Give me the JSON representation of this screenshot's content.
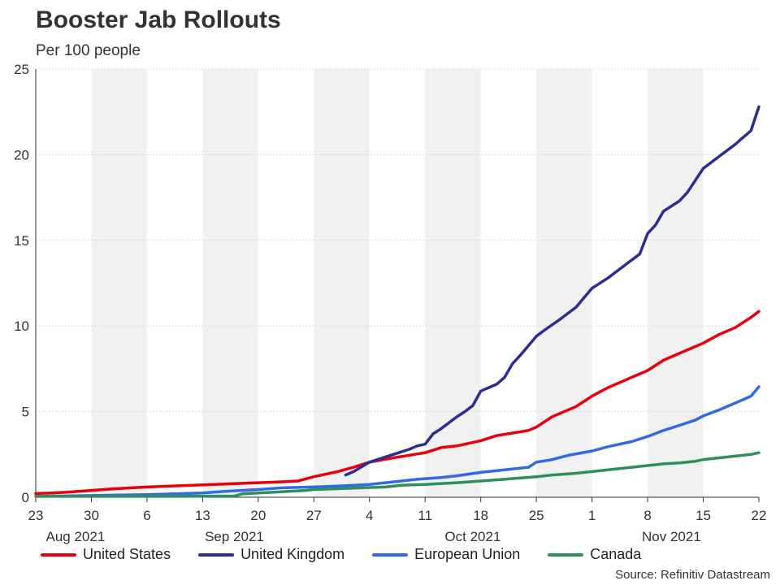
{
  "chart_data": {
    "type": "line",
    "title": "Booster Jab Rollouts",
    "subtitle": "Per 100 people",
    "source": "Source: Refinitiv Datastream",
    "ylim": [
      0,
      25
    ],
    "y_ticks": [
      "0",
      "5",
      "10",
      "15",
      "20",
      "25"
    ],
    "x_day_range": [
      0,
      91
    ],
    "x_ticks": [
      {
        "day": 0,
        "label": "23"
      },
      {
        "day": 7,
        "label": "30"
      },
      {
        "day": 14,
        "label": "6"
      },
      {
        "day": 21,
        "label": "13"
      },
      {
        "day": 28,
        "label": "20"
      },
      {
        "day": 35,
        "label": "27"
      },
      {
        "day": 42,
        "label": "4"
      },
      {
        "day": 49,
        "label": "11"
      },
      {
        "day": 56,
        "label": "18"
      },
      {
        "day": 63,
        "label": "25"
      },
      {
        "day": 70,
        "label": "1"
      },
      {
        "day": 77,
        "label": "8"
      },
      {
        "day": 84,
        "label": "15"
      },
      {
        "day": 91,
        "label": "22"
      }
    ],
    "month_labels": [
      {
        "day": 5,
        "label": "Aug 2021"
      },
      {
        "day": 25,
        "label": "Sep 2021"
      },
      {
        "day": 55,
        "label": "Oct 2021"
      },
      {
        "day": 80,
        "label": "Nov 2021"
      }
    ],
    "shaded_weeks": [
      [
        7,
        14
      ],
      [
        21,
        28
      ],
      [
        35,
        42
      ],
      [
        49,
        56
      ],
      [
        63,
        70
      ],
      [
        77,
        84
      ]
    ],
    "series": [
      {
        "name": "United States",
        "color": "#e8000b",
        "points": [
          [
            0,
            0.22
          ],
          [
            2,
            0.25
          ],
          [
            4,
            0.3
          ],
          [
            7,
            0.4
          ],
          [
            10,
            0.5
          ],
          [
            14,
            0.6
          ],
          [
            17,
            0.65
          ],
          [
            21,
            0.72
          ],
          [
            24,
            0.78
          ],
          [
            28,
            0.85
          ],
          [
            31,
            0.9
          ],
          [
            33,
            0.95
          ],
          [
            35,
            1.2
          ],
          [
            38,
            1.5
          ],
          [
            40,
            1.75
          ],
          [
            42,
            2.05
          ],
          [
            45,
            2.3
          ],
          [
            49,
            2.6
          ],
          [
            51,
            2.9
          ],
          [
            53,
            3.0
          ],
          [
            56,
            3.3
          ],
          [
            58,
            3.6
          ],
          [
            60,
            3.75
          ],
          [
            62,
            3.9
          ],
          [
            63,
            4.1
          ],
          [
            65,
            4.7
          ],
          [
            68,
            5.3
          ],
          [
            70,
            5.9
          ],
          [
            72,
            6.4
          ],
          [
            75,
            7.0
          ],
          [
            77,
            7.4
          ],
          [
            79,
            8.0
          ],
          [
            81,
            8.4
          ],
          [
            83,
            8.8
          ],
          [
            84,
            9.0
          ],
          [
            86,
            9.5
          ],
          [
            88,
            9.9
          ],
          [
            90,
            10.5
          ],
          [
            91,
            10.85
          ]
        ]
      },
      {
        "name": "United Kingdom",
        "color": "#2b2e93",
        "points": [
          [
            39,
            1.3
          ],
          [
            40,
            1.5
          ],
          [
            42,
            2.05
          ],
          [
            45,
            2.5
          ],
          [
            47,
            2.8
          ],
          [
            48,
            3.0
          ],
          [
            49,
            3.1
          ],
          [
            50,
            3.7
          ],
          [
            51,
            4.0
          ],
          [
            53,
            4.7
          ],
          [
            54,
            5.0
          ],
          [
            55,
            5.35
          ],
          [
            56,
            6.2
          ],
          [
            58,
            6.6
          ],
          [
            59,
            7.0
          ],
          [
            60,
            7.8
          ],
          [
            61,
            8.3
          ],
          [
            63,
            9.4
          ],
          [
            64,
            9.75
          ],
          [
            66,
            10.4
          ],
          [
            67,
            10.75
          ],
          [
            68,
            11.1
          ],
          [
            70,
            12.2
          ],
          [
            72,
            12.8
          ],
          [
            74,
            13.5
          ],
          [
            76,
            14.2
          ],
          [
            77,
            15.4
          ],
          [
            78,
            15.9
          ],
          [
            79,
            16.7
          ],
          [
            81,
            17.3
          ],
          [
            82,
            17.8
          ],
          [
            84,
            19.2
          ],
          [
            86,
            19.9
          ],
          [
            88,
            20.6
          ],
          [
            89,
            21.0
          ],
          [
            90,
            21.4
          ],
          [
            91,
            22.8
          ]
        ]
      },
      {
        "name": "European Union",
        "color": "#3269e6",
        "points": [
          [
            0,
            0.05
          ],
          [
            7,
            0.1
          ],
          [
            14,
            0.15
          ],
          [
            21,
            0.25
          ],
          [
            24,
            0.35
          ],
          [
            28,
            0.45
          ],
          [
            31,
            0.55
          ],
          [
            35,
            0.6
          ],
          [
            38,
            0.65
          ],
          [
            42,
            0.75
          ],
          [
            44,
            0.85
          ],
          [
            46,
            0.95
          ],
          [
            48,
            1.05
          ],
          [
            51,
            1.15
          ],
          [
            53,
            1.25
          ],
          [
            56,
            1.45
          ],
          [
            59,
            1.6
          ],
          [
            62,
            1.75
          ],
          [
            63,
            2.05
          ],
          [
            65,
            2.2
          ],
          [
            67,
            2.45
          ],
          [
            70,
            2.7
          ],
          [
            72,
            2.95
          ],
          [
            75,
            3.25
          ],
          [
            77,
            3.55
          ],
          [
            79,
            3.9
          ],
          [
            81,
            4.2
          ],
          [
            83,
            4.5
          ],
          [
            84,
            4.75
          ],
          [
            86,
            5.1
          ],
          [
            88,
            5.5
          ],
          [
            90,
            5.9
          ],
          [
            91,
            6.45
          ]
        ]
      },
      {
        "name": "Canada",
        "color": "#2f8f5a",
        "points": [
          [
            0,
            0.05
          ],
          [
            14,
            0.05
          ],
          [
            21,
            0.06
          ],
          [
            25,
            0.07
          ],
          [
            26,
            0.2
          ],
          [
            28,
            0.25
          ],
          [
            30,
            0.3
          ],
          [
            32,
            0.35
          ],
          [
            34,
            0.4
          ],
          [
            35,
            0.45
          ],
          [
            38,
            0.5
          ],
          [
            41,
            0.55
          ],
          [
            44,
            0.6
          ],
          [
            46,
            0.7
          ],
          [
            49,
            0.75
          ],
          [
            51,
            0.8
          ],
          [
            53,
            0.85
          ],
          [
            56,
            0.95
          ],
          [
            59,
            1.05
          ],
          [
            63,
            1.2
          ],
          [
            65,
            1.3
          ],
          [
            68,
            1.4
          ],
          [
            70,
            1.5
          ],
          [
            72,
            1.6
          ],
          [
            75,
            1.75
          ],
          [
            77,
            1.85
          ],
          [
            79,
            1.95
          ],
          [
            81,
            2.0
          ],
          [
            83,
            2.1
          ],
          [
            84,
            2.2
          ],
          [
            86,
            2.3
          ],
          [
            88,
            2.4
          ],
          [
            90,
            2.5
          ],
          [
            91,
            2.6
          ]
        ]
      }
    ],
    "legend": [
      "United States",
      "United Kingdom",
      "European Union",
      "Canada"
    ]
  }
}
